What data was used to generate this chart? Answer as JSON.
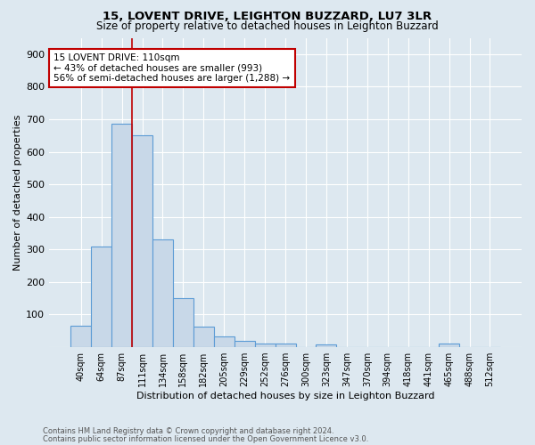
{
  "title1": "15, LOVENT DRIVE, LEIGHTON BUZZARD, LU7 3LR",
  "title2": "Size of property relative to detached houses in Leighton Buzzard",
  "xlabel": "Distribution of detached houses by size in Leighton Buzzard",
  "ylabel": "Number of detached properties",
  "footer1": "Contains HM Land Registry data © Crown copyright and database right 2024.",
  "footer2": "Contains public sector information licensed under the Open Government Licence v3.0.",
  "bar_labels": [
    "40sqm",
    "64sqm",
    "87sqm",
    "111sqm",
    "134sqm",
    "158sqm",
    "182sqm",
    "205sqm",
    "229sqm",
    "252sqm",
    "276sqm",
    "300sqm",
    "323sqm",
    "347sqm",
    "370sqm",
    "394sqm",
    "418sqm",
    "441sqm",
    "465sqm",
    "488sqm",
    "512sqm"
  ],
  "bar_values": [
    65,
    310,
    685,
    650,
    330,
    150,
    63,
    32,
    20,
    12,
    12,
    0,
    8,
    0,
    0,
    0,
    0,
    0,
    10,
    0,
    0
  ],
  "bar_color": "#c8d8e8",
  "bar_edge_color": "#5b9bd5",
  "annotation_label": "15 LOVENT DRIVE: 110sqm",
  "annotation_line1": "← 43% of detached houses are smaller (993)",
  "annotation_line2": "56% of semi-detached houses are larger (1,288) →",
  "vline_color": "#c00000",
  "vline_x_index": 2.5,
  "annotation_box_color": "#ffffff",
  "annotation_box_edge": "#c00000",
  "ylim": [
    0,
    950
  ],
  "yticks": [
    0,
    100,
    200,
    300,
    400,
    500,
    600,
    700,
    800,
    900
  ],
  "bg_color": "#dde8f0",
  "grid_color": "#ffffff"
}
